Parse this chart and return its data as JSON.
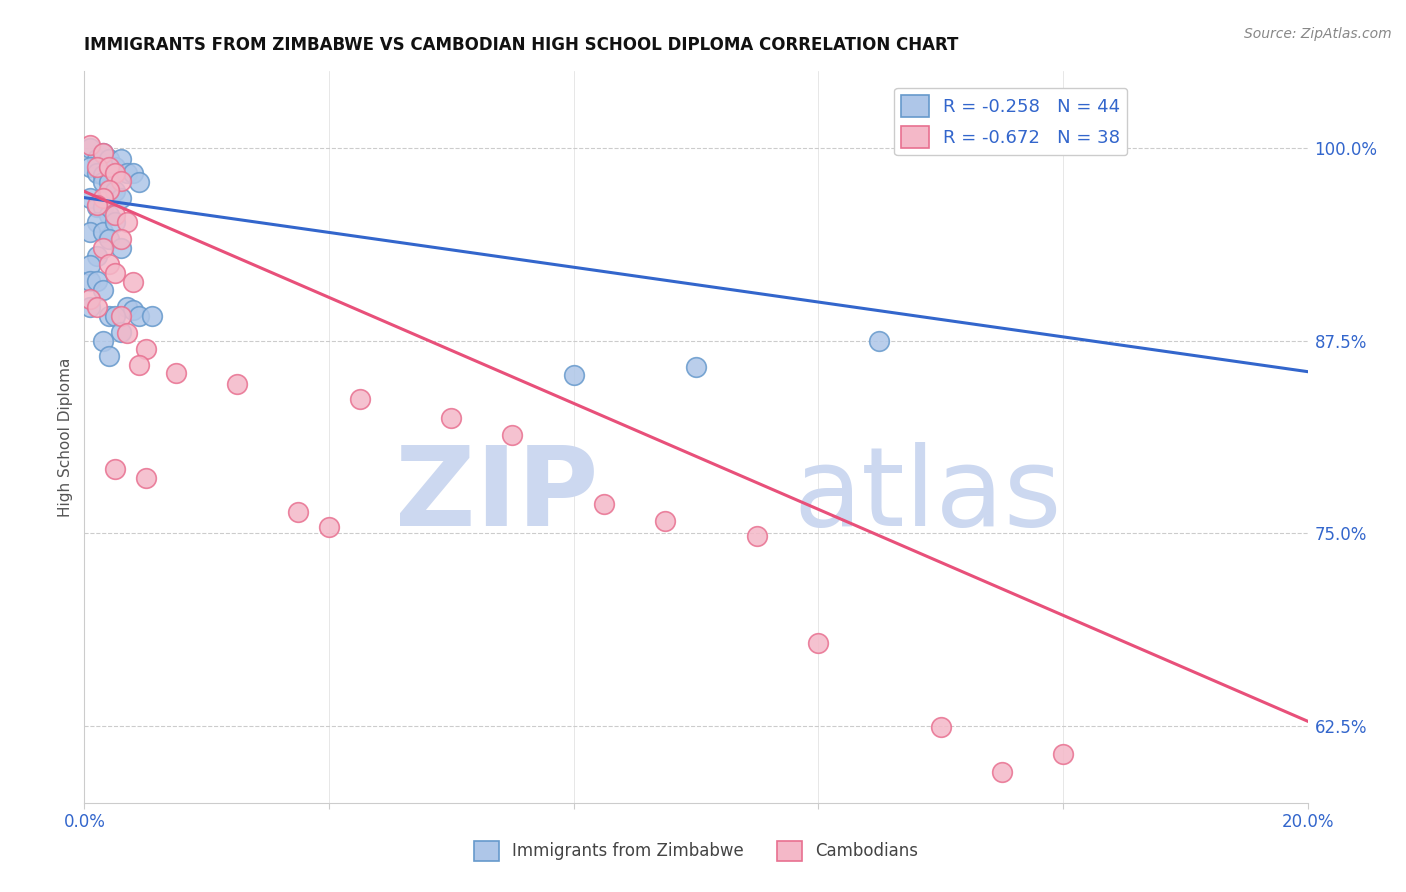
{
  "title": "IMMIGRANTS FROM ZIMBABWE VS CAMBODIAN HIGH SCHOOL DIPLOMA CORRELATION CHART",
  "source": "Source: ZipAtlas.com",
  "ylabel": "High School Diploma",
  "ytick_labels": [
    "62.5%",
    "75.0%",
    "87.5%",
    "100.0%"
  ],
  "ytick_values": [
    0.625,
    0.75,
    0.875,
    1.0
  ],
  "xlim": [
    0.0,
    0.2
  ],
  "ylim": [
    0.575,
    1.05
  ],
  "legend_text_blue": "R = -0.258   N = 44",
  "legend_text_pink": "R = -0.672   N = 38",
  "watermark_zip": "ZIP",
  "watermark_atlas": "atlas",
  "blue_scatter": [
    [
      0.001,
      1.0
    ],
    [
      0.002,
      0.993
    ],
    [
      0.001,
      0.988
    ],
    [
      0.003,
      0.997
    ],
    [
      0.004,
      0.993
    ],
    [
      0.002,
      0.984
    ],
    [
      0.003,
      0.983
    ],
    [
      0.005,
      0.988
    ],
    [
      0.006,
      0.993
    ],
    [
      0.003,
      0.978
    ],
    [
      0.004,
      0.978
    ],
    [
      0.005,
      0.972
    ],
    [
      0.007,
      0.984
    ],
    [
      0.008,
      0.984
    ],
    [
      0.006,
      0.968
    ],
    [
      0.009,
      0.978
    ],
    [
      0.001,
      0.968
    ],
    [
      0.002,
      0.962
    ],
    [
      0.003,
      0.962
    ],
    [
      0.004,
      0.957
    ],
    [
      0.002,
      0.952
    ],
    [
      0.001,
      0.946
    ],
    [
      0.003,
      0.946
    ],
    [
      0.005,
      0.952
    ],
    [
      0.004,
      0.941
    ],
    [
      0.006,
      0.935
    ],
    [
      0.002,
      0.93
    ],
    [
      0.001,
      0.924
    ],
    [
      0.001,
      0.914
    ],
    [
      0.002,
      0.914
    ],
    [
      0.003,
      0.908
    ],
    [
      0.001,
      0.897
    ],
    [
      0.007,
      0.897
    ],
    [
      0.008,
      0.895
    ],
    [
      0.004,
      0.891
    ],
    [
      0.005,
      0.891
    ],
    [
      0.009,
      0.891
    ],
    [
      0.006,
      0.881
    ],
    [
      0.003,
      0.875
    ],
    [
      0.004,
      0.865
    ],
    [
      0.011,
      0.891
    ],
    [
      0.13,
      0.875
    ],
    [
      0.08,
      0.853
    ],
    [
      0.1,
      0.858
    ]
  ],
  "pink_scatter": [
    [
      0.001,
      1.002
    ],
    [
      0.003,
      0.997
    ],
    [
      0.002,
      0.988
    ],
    [
      0.004,
      0.988
    ],
    [
      0.005,
      0.984
    ],
    [
      0.006,
      0.979
    ],
    [
      0.004,
      0.973
    ],
    [
      0.003,
      0.968
    ],
    [
      0.002,
      0.963
    ],
    [
      0.005,
      0.957
    ],
    [
      0.007,
      0.952
    ],
    [
      0.006,
      0.941
    ],
    [
      0.003,
      0.935
    ],
    [
      0.004,
      0.925
    ],
    [
      0.005,
      0.919
    ],
    [
      0.008,
      0.913
    ],
    [
      0.001,
      0.902
    ],
    [
      0.002,
      0.897
    ],
    [
      0.006,
      0.891
    ],
    [
      0.007,
      0.88
    ],
    [
      0.01,
      0.87
    ],
    [
      0.009,
      0.859
    ],
    [
      0.015,
      0.854
    ],
    [
      0.025,
      0.847
    ],
    [
      0.045,
      0.837
    ],
    [
      0.06,
      0.825
    ],
    [
      0.07,
      0.814
    ],
    [
      0.085,
      0.769
    ],
    [
      0.095,
      0.758
    ],
    [
      0.11,
      0.748
    ],
    [
      0.005,
      0.792
    ],
    [
      0.01,
      0.786
    ],
    [
      0.035,
      0.764
    ],
    [
      0.04,
      0.754
    ],
    [
      0.12,
      0.679
    ],
    [
      0.14,
      0.624
    ],
    [
      0.15,
      0.595
    ],
    [
      0.16,
      0.607
    ]
  ],
  "blue_line": [
    [
      0.0,
      0.968
    ],
    [
      0.2,
      0.855
    ]
  ],
  "pink_line": [
    [
      0.0,
      0.972
    ],
    [
      0.2,
      0.628
    ]
  ],
  "dot_color_blue": "#aec6e8",
  "dot_edge_blue": "#6699cc",
  "dot_color_pink": "#f4b8c8",
  "dot_edge_pink": "#e87090",
  "line_color_blue": "#3366cc",
  "line_color_pink": "#e8507a",
  "background": "#ffffff",
  "grid_color": "#cccccc"
}
